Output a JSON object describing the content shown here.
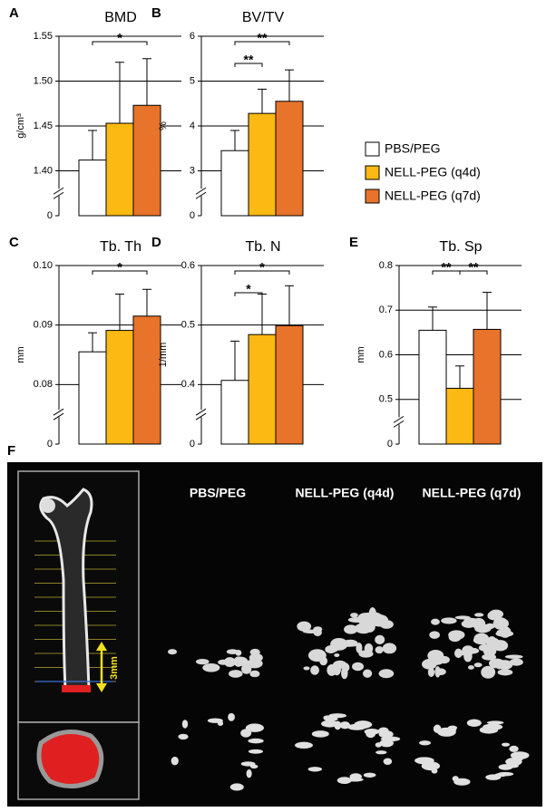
{
  "legend": [
    {
      "name": "PBS/PEG",
      "color": "#ffffff"
    },
    {
      "name": "NELL-PEG (q4d)",
      "color": "#fdb913"
    },
    {
      "name": "NELL-PEG (q7d)",
      "color": "#e8732a"
    }
  ],
  "chart_data": [
    {
      "type": "bar",
      "panel": "A",
      "title": "BMD",
      "ylabel": "g/cm³",
      "values": [
        1.412,
        1.453,
        1.473
      ],
      "errors": [
        0.033,
        0.068,
        0.052
      ],
      "ylim": [
        0,
        1.55
      ],
      "yticks": [
        0,
        {
          "value": 1.4,
          "label": "1.40"
        },
        {
          "value": 1.45,
          "label": "1.45"
        },
        {
          "value": 1.5,
          "label": "1.50"
        },
        {
          "value": 1.55,
          "label": "1.55"
        }
      ],
      "grid": true,
      "significance": [
        {
          "label": "*",
          "between": [
            "PBS/PEG",
            "NELL-PEG (q7d)"
          ]
        }
      ]
    },
    {
      "type": "bar",
      "panel": "B",
      "title": "BV/TV",
      "ylabel": "%",
      "values": [
        3.45,
        4.28,
        4.55
      ],
      "errors": [
        0.45,
        0.54,
        0.7
      ],
      "ylim": [
        0,
        6
      ],
      "yticks": [
        0,
        3,
        4,
        5,
        6
      ],
      "grid": true,
      "significance": [
        {
          "label": "**",
          "between": [
            "PBS/PEG",
            "NELL-PEG (q4d)"
          ]
        },
        {
          "label": "**",
          "between": [
            "PBS/PEG",
            "NELL-PEG (q7d)"
          ]
        }
      ]
    },
    {
      "type": "bar",
      "panel": "C",
      "title": "Tb. Th",
      "ylabel": "mm",
      "values": [
        0.0855,
        0.0891,
        0.0915
      ],
      "errors": [
        0.0032,
        0.0061,
        0.0045
      ],
      "ylim": [
        0,
        0.1
      ],
      "yticks": [
        0,
        {
          "value": 0.08,
          "label": "0.08"
        },
        {
          "value": 0.09,
          "label": "0.09"
        },
        {
          "value": 0.1,
          "label": "0.10"
        }
      ],
      "grid": true,
      "significance": [
        {
          "label": "*",
          "between": [
            "PBS/PEG",
            "NELL-PEG (q7d)"
          ]
        }
      ]
    },
    {
      "type": "bar",
      "panel": "D",
      "title": "Tb. N",
      "ylabel": "1/mm",
      "values": [
        0.407,
        0.484,
        0.499
      ],
      "errors": [
        0.066,
        0.068,
        0.067
      ],
      "ylim": [
        0,
        0.6
      ],
      "yticks": [
        0,
        0.4,
        0.5,
        0.6
      ],
      "grid": true,
      "significance": [
        {
          "label": "*",
          "between": [
            "PBS/PEG",
            "NELL-PEG (q4d)"
          ]
        },
        {
          "label": "*",
          "between": [
            "PBS/PEG",
            "NELL-PEG (q7d)"
          ]
        }
      ]
    },
    {
      "type": "bar",
      "panel": "E",
      "title": "Tb. Sp",
      "ylabel": "mm",
      "values": [
        0.655,
        0.525,
        0.657
      ],
      "errors": [
        0.052,
        0.05,
        0.083
      ],
      "ylim": [
        0,
        0.8
      ],
      "yticks": [
        0,
        0.5,
        0.6,
        0.7,
        0.8
      ],
      "grid": true,
      "significance": [
        {
          "label": "**",
          "between": [
            "PBS/PEG",
            "NELL-PEG (q4d)"
          ]
        },
        {
          "label": "**",
          "between": [
            "NELL-PEG (q4d)",
            "NELL-PEG (q7d)"
          ]
        }
      ]
    }
  ],
  "figure_f": {
    "panel": "F",
    "columns": [
      "PBS/PEG",
      "NELL-PEG (q4d)",
      "NELL-PEG (q7d)"
    ],
    "scale_label": "3mm"
  }
}
